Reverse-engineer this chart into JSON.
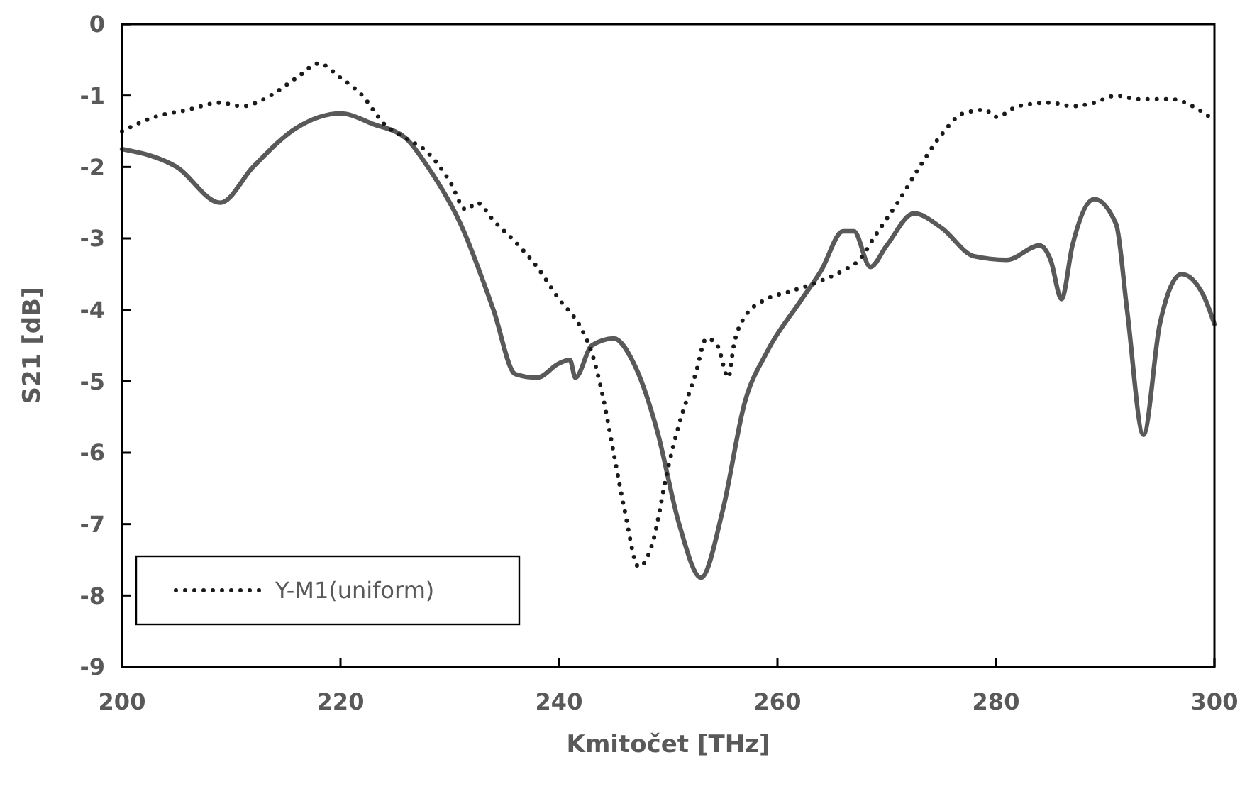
{
  "chart_data": {
    "type": "line",
    "xlabel": "Kmitočet [THz]",
    "ylabel": "S21 [dB]",
    "xlim": [
      200,
      300
    ],
    "xticks": [
      200,
      220,
      240,
      260,
      280,
      300
    ],
    "ylim": [
      -9,
      0
    ],
    "yticks": [
      -9,
      -8,
      -7,
      -6,
      -5,
      -4,
      -3,
      -2,
      -1,
      0
    ],
    "grid": false,
    "legend": "bottom left",
    "series": [
      {
        "color": "#595959",
        "line_style": "solid",
        "x": [
          200,
          205,
          209,
          212,
          216,
          220,
          223,
          226,
          228,
          231,
          234,
          236,
          238,
          240,
          241,
          241.5,
          243,
          245,
          247,
          249,
          251,
          253,
          255,
          257,
          259,
          262,
          264,
          266,
          267,
          268.5,
          270,
          272.5,
          275,
          278,
          281,
          284,
          285,
          286,
          287,
          289,
          291,
          292,
          293.5,
          295,
          297,
          299,
          300
        ],
        "values": [
          -1.75,
          -2.0,
          -2.5,
          -2.0,
          -1.45,
          -1.25,
          -1.4,
          -1.6,
          -2.0,
          -2.8,
          -4.0,
          -4.9,
          -4.95,
          -4.75,
          -4.7,
          -4.95,
          -4.5,
          -4.4,
          -4.8,
          -5.7,
          -7.0,
          -7.75,
          -6.8,
          -5.3,
          -4.6,
          -3.9,
          -3.45,
          -2.9,
          -2.9,
          -3.4,
          -3.1,
          -2.65,
          -2.85,
          -3.25,
          -3.3,
          -3.1,
          -3.3,
          -3.85,
          -3.1,
          -2.45,
          -2.8,
          -4.0,
          -5.75,
          -4.2,
          -3.5,
          -3.8,
          -4.2
        ]
      },
      {
        "name": "Y-M1(uniform)",
        "color": "#1a1a1a",
        "line_style": "dotted",
        "x": [
          200,
          203,
          206,
          209,
          211,
          213,
          216,
          218,
          220,
          222,
          224,
          226,
          228,
          230,
          231.5,
          232.5,
          234,
          236,
          238,
          240,
          242,
          243,
          244,
          245,
          246,
          247.3,
          248.5,
          250,
          251,
          252.5,
          253.5,
          254.5,
          255.5,
          256,
          257,
          259,
          261,
          263,
          266,
          267.5,
          269,
          271,
          273,
          275,
          277,
          279,
          280,
          282,
          285,
          287,
          289,
          291,
          293,
          296,
          298,
          300
        ],
        "values": [
          -1.5,
          -1.3,
          -1.2,
          -1.1,
          -1.15,
          -1.05,
          -0.75,
          -0.55,
          -0.75,
          -1.0,
          -1.4,
          -1.6,
          -1.8,
          -2.2,
          -2.6,
          -2.5,
          -2.75,
          -3.05,
          -3.4,
          -3.85,
          -4.25,
          -4.6,
          -5.2,
          -6.0,
          -6.8,
          -7.6,
          -7.3,
          -6.2,
          -5.6,
          -4.9,
          -4.4,
          -4.5,
          -4.95,
          -4.5,
          -4.1,
          -3.85,
          -3.75,
          -3.65,
          -3.45,
          -3.3,
          -2.95,
          -2.5,
          -2.0,
          -1.55,
          -1.25,
          -1.2,
          -1.3,
          -1.15,
          -1.1,
          -1.15,
          -1.1,
          -1.0,
          -1.05,
          -1.05,
          -1.15,
          -1.35
        ]
      }
    ]
  }
}
